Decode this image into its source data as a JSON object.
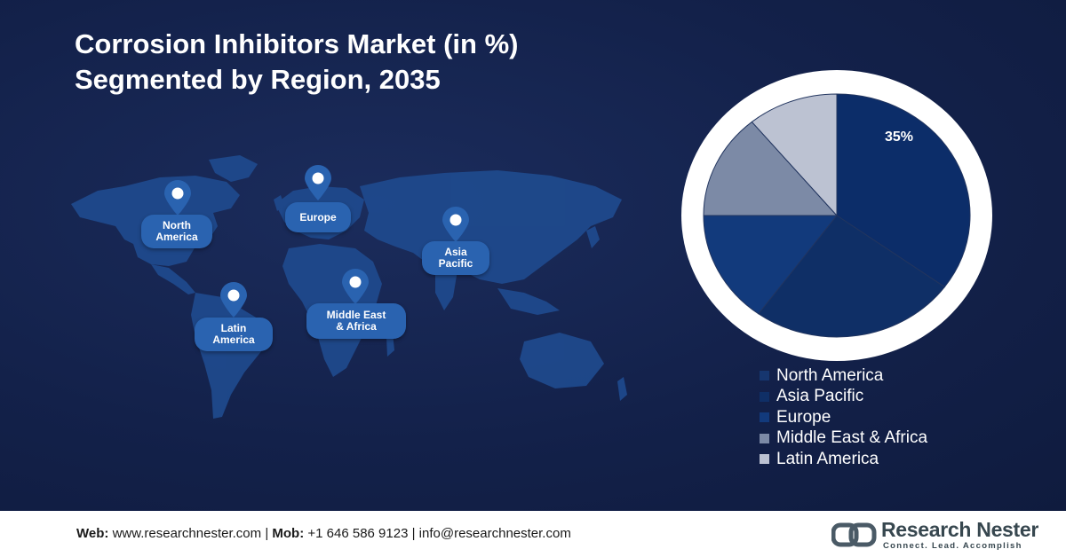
{
  "title": {
    "line1": "Corrosion Inhibitors Market (in %)",
    "line2": "Segmented by Region, 2035"
  },
  "map": {
    "pins": [
      {
        "key": "north_america",
        "label_lines": [
          "North",
          "America"
        ]
      },
      {
        "key": "europe",
        "label_lines": [
          "Europe"
        ]
      },
      {
        "key": "asia_pacific",
        "label_lines": [
          "Asia",
          "Pacific"
        ]
      },
      {
        "key": "latin_america",
        "label_lines": [
          "Latin",
          "America"
        ]
      },
      {
        "key": "mea",
        "label_lines": [
          "Middle East",
          "& Africa"
        ]
      }
    ]
  },
  "chart_data": {
    "type": "pie",
    "title": "Corrosion Inhibitors Market (in %) Segmented by Region, 2035",
    "slices": [
      {
        "label": "North America",
        "value": 35,
        "color": "#0c2d69",
        "label_text": "35%"
      },
      {
        "label": "Asia Pacific",
        "value": 25,
        "color": "#0f2f66",
        "label_text": ""
      },
      {
        "label": "Europe",
        "value": 15,
        "color": "#123a7c",
        "label_text": ""
      },
      {
        "label": "Middle East & Africa",
        "value": 14,
        "color": "#7c8aa6",
        "label_text": ""
      },
      {
        "label": "Latin America",
        "value": 11,
        "color": "#bcc2d2",
        "label_text": ""
      }
    ],
    "legend_position": "bottom-right"
  },
  "footer": {
    "web_label": "Web:",
    "web_value": "www.researchnester.com",
    "sep1": "|",
    "mob_label": "Mob:",
    "mob_value": "+1 646 586 9123",
    "sep2": "|",
    "email": "info@researchnester.com",
    "logo_name": "Research Nester",
    "logo_tagline": "Connect. Lead. Accomplish"
  },
  "colors": {
    "background": "#13214a",
    "pill": "#2a63b0",
    "map_land": "#1f4b8f"
  }
}
